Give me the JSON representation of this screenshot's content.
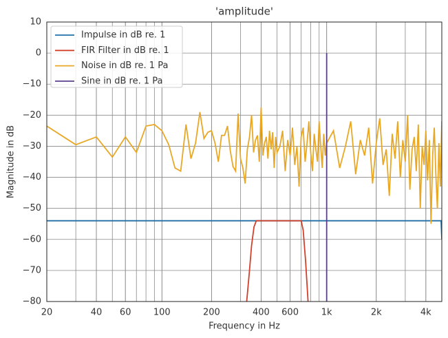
{
  "chart_data": {
    "type": "line",
    "title": "'amplitude'",
    "xlabel": "Frequency in Hz",
    "ylabel": "Magnitude in dB",
    "xscale": "log",
    "xlim": [
      20,
      5000
    ],
    "ylim": [
      -80,
      10
    ],
    "grid": true,
    "legend": "upper left",
    "xticks": [
      20,
      40,
      60,
      100,
      200,
      400,
      600,
      {
        "value": 1000,
        "label": "1k"
      },
      {
        "value": 2000,
        "label": "2k"
      },
      {
        "value": 4000,
        "label": "4k"
      }
    ],
    "yticks": [
      {
        "value": -80,
        "label": "−80"
      },
      {
        "value": -70,
        "label": "−70"
      },
      {
        "value": -60,
        "label": "−60"
      },
      {
        "value": -50,
        "label": "−50"
      },
      {
        "value": -40,
        "label": "−40"
      },
      {
        "value": -30,
        "label": "−30"
      },
      {
        "value": -20,
        "label": "−20"
      },
      {
        "value": -10,
        "label": "−10"
      },
      0,
      10
    ],
    "series": [
      {
        "name": "Impulse in dB re. 1",
        "color": "#1f6fa6",
        "x": [
          20,
          4950,
          5000
        ],
        "values": [
          -54,
          -54,
          -60
        ]
      },
      {
        "name": "FIR Filter in dB re. 1",
        "color": "#d0402a",
        "x": [
          327,
          340,
          350,
          362,
          374,
          700,
          720,
          745,
          771
        ],
        "values": [
          -80,
          -70,
          -62,
          -56,
          -54,
          -54,
          -57,
          -67,
          -80
        ]
      },
      {
        "name": "Noise in dB re. 1 Pa",
        "color": "#e8a825",
        "x": [
          20,
          30,
          40,
          50,
          60,
          70,
          80,
          90,
          100,
          110,
          120,
          130,
          140,
          150,
          160,
          170,
          180,
          190,
          200,
          210,
          220,
          230,
          240,
          250,
          260,
          270,
          280,
          290,
          300,
          310,
          320,
          330,
          340,
          350,
          360,
          370,
          380,
          390,
          400,
          410,
          420,
          430,
          440,
          450,
          460,
          470,
          480,
          490,
          500,
          520,
          540,
          560,
          580,
          600,
          620,
          640,
          660,
          680,
          700,
          720,
          740,
          760,
          780,
          800,
          820,
          840,
          860,
          880,
          900,
          920,
          940,
          960,
          980,
          1000,
          1100,
          1200,
          1300,
          1400,
          1500,
          1600,
          1700,
          1800,
          1900,
          2000,
          2100,
          2200,
          2300,
          2400,
          2500,
          2600,
          2700,
          2800,
          2900,
          3000,
          3100,
          3200,
          3300,
          3400,
          3500,
          3600,
          3700,
          3800,
          3900,
          4000,
          4100,
          4200,
          4300,
          4400,
          4500,
          4600,
          4700,
          4800,
          4900,
          5000
        ],
        "values": [
          -23.5,
          -29.5,
          -27,
          -33.5,
          -27,
          -32,
          -23.5,
          -23,
          -25,
          -29.5,
          -37,
          -38,
          -23,
          -34,
          -29,
          -19,
          -27.5,
          -25.5,
          -25,
          -29,
          -35,
          -26.5,
          -26.5,
          -23.5,
          -31.5,
          -36.5,
          -38,
          -19.5,
          -34,
          -37,
          -42,
          -31,
          -27,
          -20,
          -32,
          -28,
          -26.5,
          -35,
          -17.5,
          -33,
          -29,
          -27,
          -34,
          -25,
          -31,
          -25.5,
          -37,
          -27,
          -32,
          -30,
          -25,
          -38,
          -28,
          -33,
          -24,
          -36,
          -30,
          -43,
          -27,
          -24,
          -35,
          -29,
          -22,
          -32,
          -38,
          -26,
          -31,
          -35,
          -22,
          -30,
          -37,
          -26,
          -33,
          -29,
          -25,
          -37,
          -30,
          -22,
          -39,
          -28,
          -33,
          -24,
          -42,
          -29,
          -21,
          -36,
          -31,
          -46,
          -26,
          -34,
          -22,
          -40,
          -28,
          -35,
          -20,
          -44,
          -31,
          -27,
          -38,
          -23,
          -50,
          -30,
          -36,
          -25,
          -41,
          -28,
          -55,
          -33,
          -24,
          -39,
          -50,
          -29,
          -43,
          -22
        ]
      },
      {
        "name": "Sine in dB re. 1 Pa",
        "color": "#5a3f8c",
        "x": [
          1000,
          1000
        ],
        "values": [
          -80,
          0
        ]
      }
    ]
  }
}
